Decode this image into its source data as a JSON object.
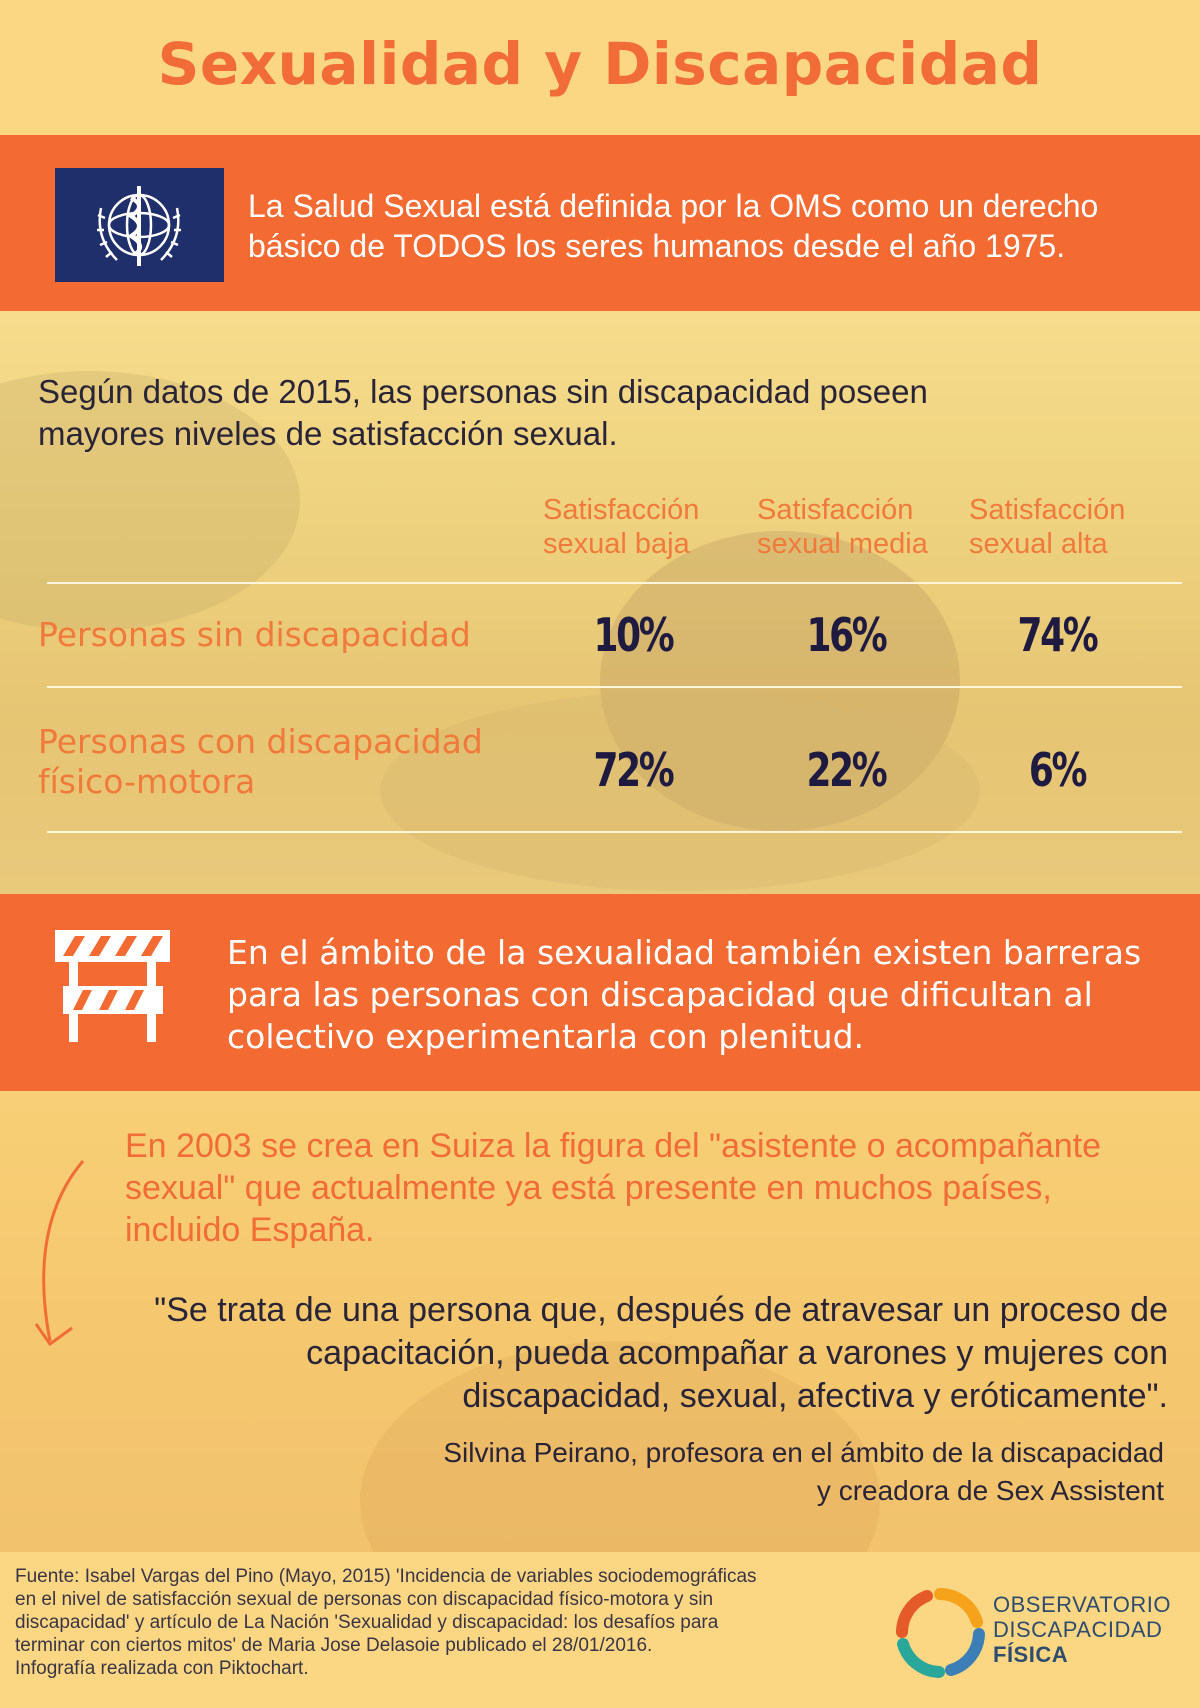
{
  "title": "Sexualidad y Discapacidad",
  "oms": {
    "flag_icon": "who-emblem-icon",
    "text_line1": "La Salud Sexual está definida por la OMS como un derecho",
    "text_line2": "básico de TODOS los seres humanos desde el año 1975."
  },
  "stats": {
    "intro_line1": "Según datos de 2015, las personas sin discapacidad poseen",
    "intro_line2": "mayores niveles de satisfacción sexual.",
    "columns": [
      {
        "line1": "Satisfacción",
        "line2": "sexual baja"
      },
      {
        "line1": "Satisfacción",
        "line2": "sexual media"
      },
      {
        "line1": "Satisfacción",
        "line2": "sexual alta"
      }
    ],
    "rows": [
      {
        "label_line1": "Personas sin discapacidad",
        "label_line2": "",
        "values": [
          "10%",
          "16%",
          "74%"
        ]
      },
      {
        "label_line1": "Personas con discapacidad",
        "label_line2": "físico-motora",
        "values": [
          "72%",
          "22%",
          "6%"
        ]
      }
    ]
  },
  "barrier": {
    "icon": "road-barrier-icon",
    "line1": "En el ámbito de la sexualidad también existen barreras",
    "line2": "para las personas con discapacidad que dificultan al",
    "line3": "colectivo experimentarla con plenitud."
  },
  "assistant": {
    "line1": "En 2003 se crea en Suiza la figura del \"asistente o acompañante",
    "line2": "sexual\" que actualmente ya está presente en muchos países,",
    "line3": "incluido España."
  },
  "quote": {
    "line1": "\"Se trata de una persona que, después de atravesar un proceso de",
    "line2": "capacitación, pueda acompañar a varones y mujeres con",
    "line3": "discapacidad, sexual, afectiva y eróticamente\".",
    "author_line1": "Silvina Peirano, profesora en el ámbito de la discapacidad",
    "author_line2": "y creadora de Sex Assistent"
  },
  "footer": {
    "source_line1": "Fuente: Isabel Vargas del Pino (Mayo, 2015) 'Incidencia de variables sociodemográficas",
    "source_line2": "en el nivel de satisfacción sexual de personas con discapacidad físico-motora y sin",
    "source_line3": "discapacidad' y artículo de La Nación 'Sexualidad y discapacidad: los desafíos para",
    "source_line4": "terminar con ciertos mitos' de Maria Jose Delasoie publicado el 28/01/2016.",
    "source_line5": "Infografía realizada con Piktochart.",
    "logo_line1": "OBSERVATORIO",
    "logo_line2": "DISCAPACIDAD",
    "logo_line3": "FÍSICA"
  },
  "colors": {
    "orange": "#f36b33",
    "yellow": "#fcd783",
    "navy": "#1f1a40",
    "who_blue": "#1f2f6c"
  }
}
